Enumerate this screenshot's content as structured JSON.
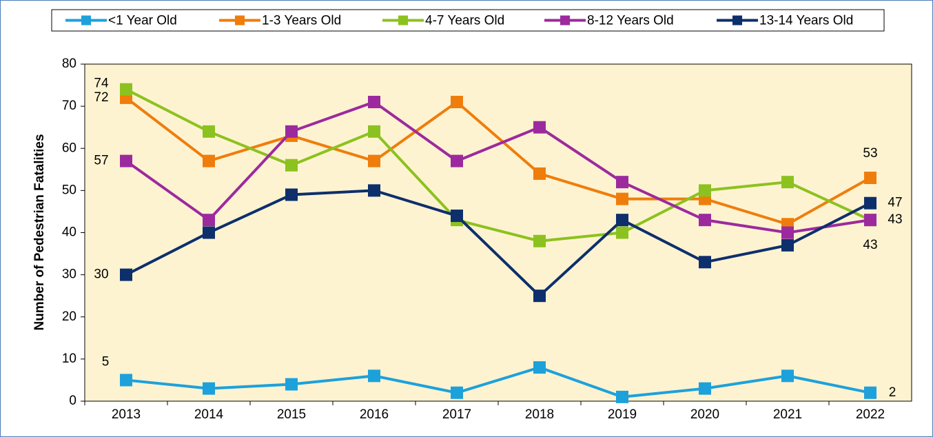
{
  "chart_data": {
    "type": "line",
    "categories": [
      "2013",
      "2014",
      "2015",
      "2016",
      "2017",
      "2018",
      "2019",
      "2020",
      "2021",
      "2022"
    ],
    "y_label": "Number of Pedestrian Fatalities",
    "ylim": [
      0,
      80
    ],
    "yticks": [
      0,
      10,
      20,
      30,
      40,
      50,
      60,
      70,
      80
    ],
    "legend": "top",
    "series": [
      {
        "name": "<1 Year Old",
        "color": "#1da1db",
        "values": [
          5,
          3,
          4,
          6,
          2,
          8,
          1,
          3,
          6,
          2
        ]
      },
      {
        "name": "1-3 Years Old",
        "color": "#ef7d0b",
        "values": [
          72,
          57,
          63,
          57,
          71,
          54,
          48,
          48,
          42,
          53
        ]
      },
      {
        "name": "4-7 Years Old",
        "color": "#8cc21f",
        "values": [
          74,
          64,
          56,
          64,
          43,
          38,
          40,
          50,
          52,
          43
        ]
      },
      {
        "name": "8-12 Years Old",
        "color": "#9c2a9e",
        "values": [
          57,
          43,
          64,
          71,
          57,
          65,
          52,
          43,
          40,
          43
        ]
      },
      {
        "name": "13-14 Years Old",
        "color": "#0d2f6c",
        "values": [
          30,
          40,
          49,
          50,
          44,
          25,
          43,
          33,
          37,
          47
        ]
      }
    ]
  }
}
